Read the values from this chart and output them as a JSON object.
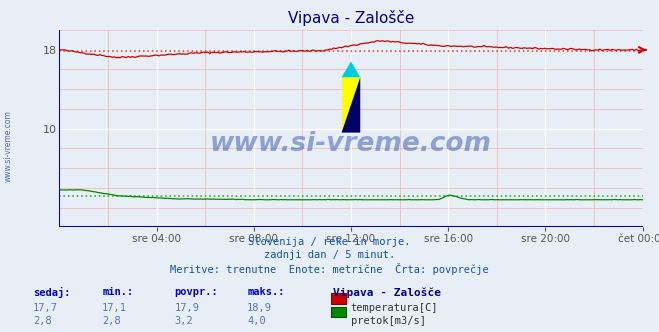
{
  "title": "Vipava - Zalošče",
  "bg_color": "#e8eef5",
  "plot_bg_color": "#e8eef5",
  "grid_color_white": "#ffffff",
  "grid_color_pink": "#f0b0b0",
  "xlabel_ticks": [
    "sre 04:00",
    "sre 08:00",
    "sre 12:00",
    "sre 16:00",
    "sre 20:00",
    "čet 00:00"
  ],
  "ylim": [
    0,
    20.0
  ],
  "yticks": [
    10,
    18
  ],
  "temp_color": "#cc0000",
  "flow_color": "#008800",
  "avg_temp_dotted_color": "#dd4444",
  "avg_flow_dotted_color": "#44aa44",
  "blue_border_color": "#0000cc",
  "temp_avg": 17.9,
  "flow_avg": 3.2,
  "temp_min": 17.1,
  "temp_max": 18.9,
  "flow_min": 2.8,
  "flow_max": 4.0,
  "temp_current": 17.7,
  "flow_current": 2.8,
  "n_points": 288,
  "watermark_text": "www.si-vreme.com",
  "station": "Vipava - Zalošče",
  "subtitle_lines": [
    "Slovenija / reke in morje.",
    "zadnji dan / 5 minut.",
    "Meritve: trenutne  Enote: metrične  Črta: povprečje"
  ],
  "headers": [
    "sedaj:",
    "min.:",
    "povpr.:",
    "maks.:"
  ],
  "temp_vals": [
    "17,7",
    "17,1",
    "17,9",
    "18,9"
  ],
  "flow_vals": [
    "2,8",
    "2,8",
    "3,2",
    "4,0"
  ],
  "left_label": "www.si-vreme.com",
  "logo_yellow": "#ffff00",
  "logo_blue_dark": "#000066",
  "logo_cyan": "#00ccdd"
}
